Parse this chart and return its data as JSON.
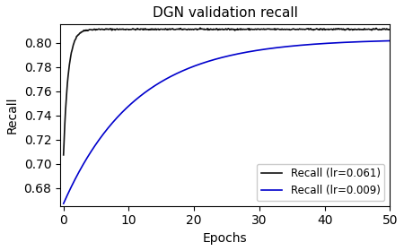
{
  "title": "DGN validation recall",
  "xlabel": "Epochs",
  "ylabel": "Recall",
  "xlim": [
    -0.5,
    50
  ],
  "ylim": [
    0.665,
    0.815
  ],
  "yticks": [
    0.68,
    0.7,
    0.72,
    0.74,
    0.76,
    0.78,
    0.8
  ],
  "xticks": [
    0,
    10,
    20,
    30,
    40,
    50
  ],
  "line1_color": "#111111",
  "line2_color": "#0000cc",
  "line1_label": "Recall (lr=0.061)",
  "line2_label": "Recall (lr=0.009)",
  "line1_y0": 0.707,
  "line1_ymax": 0.811,
  "line1_rate": 1.4,
  "line2_y0": 0.667,
  "line2_ymax": 0.803,
  "line2_rate": 0.09,
  "n_points": 500,
  "figwidth": 4.5,
  "figheight": 2.8,
  "dpi": 100
}
